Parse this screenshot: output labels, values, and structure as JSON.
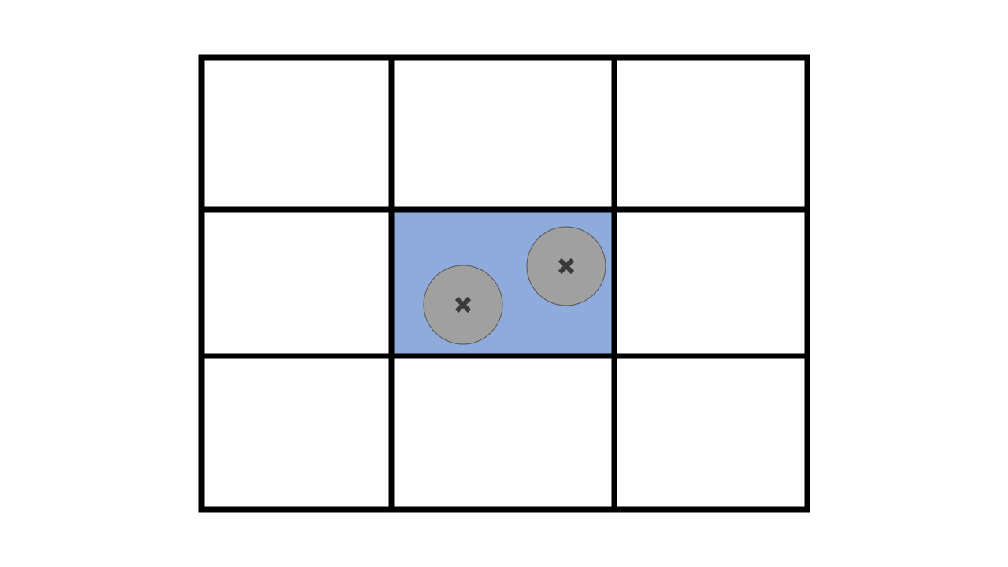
{
  "board": {
    "rows": 3,
    "cols": 3,
    "line_color": "#000000",
    "background_color": "#ffffff",
    "highlight_color": "#8eabdc",
    "highlighted_cell": {
      "row": 1,
      "col": 1
    }
  },
  "markers": [
    {
      "name": "marker-left",
      "cell": {
        "row": 1,
        "col": 1
      },
      "icon": "x-icon",
      "fill_color": "#a0a0a0",
      "icon_color": "#3a3a3a"
    },
    {
      "name": "marker-right",
      "cell": {
        "row": 1,
        "col": 1
      },
      "icon": "x-icon",
      "fill_color": "#a0a0a0",
      "icon_color": "#3a3a3a"
    }
  ]
}
